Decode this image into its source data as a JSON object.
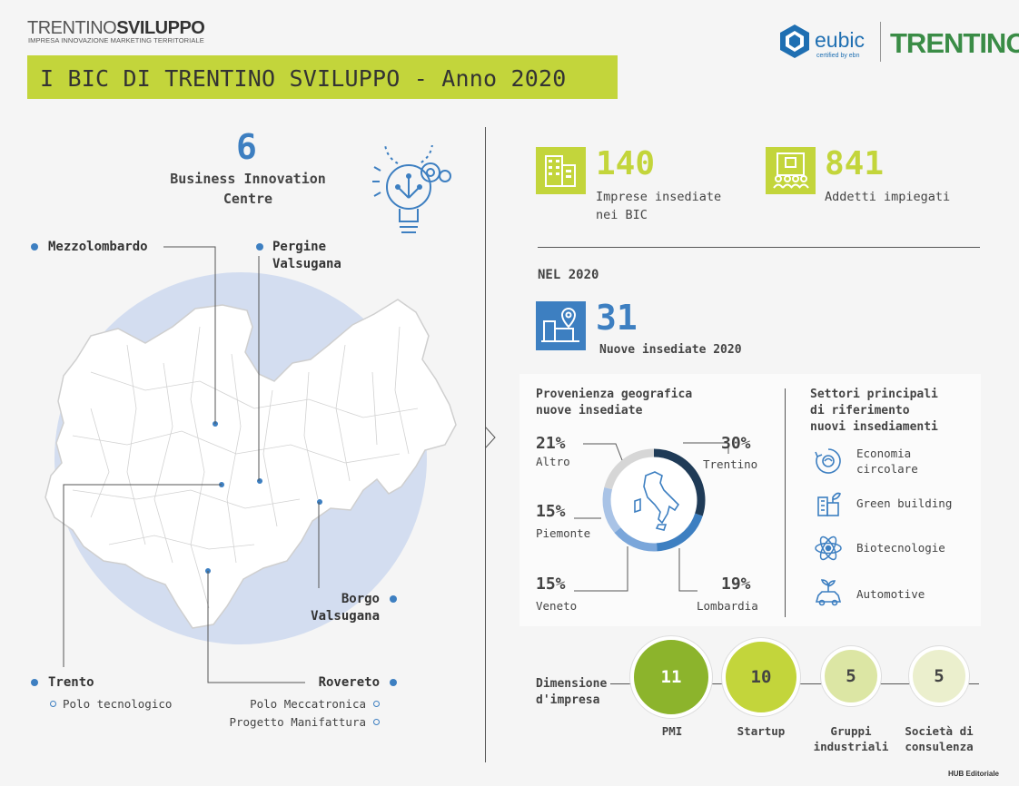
{
  "header": {
    "brand_name_light": "TRENTINO",
    "brand_name_bold": "SVILUPPO",
    "brand_subtitle": "IMPRESA INNOVAZIONE MARKETING TERRITORIALE",
    "title": "I BIC DI TRENTINO SVILUPPO - Anno 2020",
    "eubic_logo": "eubic",
    "eubic_sub": "certified by ebn",
    "trentino_logo": "TRENTINO"
  },
  "bic": {
    "count": "6",
    "label_line1": "Business Innovation",
    "label_line2": "Centre",
    "icon": "lightbulb-gear-icon"
  },
  "map": {
    "cities": [
      {
        "name": "Mezzolombardo"
      },
      {
        "name_line1": "Pergine",
        "name_line2": "Valsugana"
      },
      {
        "name_line1": "Borgo",
        "name_line2": "Valsugana"
      },
      {
        "name": "Trento",
        "sub": [
          "Polo tecnologico"
        ]
      },
      {
        "name": "Rovereto",
        "sub": [
          "Polo Meccatronica",
          "Progetto Manifattura"
        ]
      }
    ]
  },
  "stats": {
    "imprese": {
      "value": "140",
      "label_line1": "Imprese insediate",
      "label_line2": "nei BIC",
      "icon": "buildings-icon"
    },
    "addetti": {
      "value": "841",
      "label": "Addetti impiegati",
      "icon": "office-workers-icon"
    },
    "nel_2020": "NEL 2020",
    "nuove": {
      "value": "31",
      "label": "Nuove insediate 2020",
      "icon": "location-building-icon"
    }
  },
  "provenienza": {
    "title_line1": "Provenienza geografica",
    "title_line2": "nuove insediate",
    "items": [
      {
        "pct": "30%",
        "label": "Trentino"
      },
      {
        "pct": "19%",
        "label": "Lombardia"
      },
      {
        "pct": "15%",
        "label": "Veneto"
      },
      {
        "pct": "15%",
        "label": "Piemonte"
      },
      {
        "pct": "21%",
        "label": "Altro"
      }
    ]
  },
  "settori": {
    "title_line1": "Settori principali",
    "title_line2": "di riferimento",
    "title_line3": "nuovi insediamenti",
    "items": [
      {
        "label_line1": "Economia",
        "label_line2": "circolare",
        "icon": "circular-economy-icon"
      },
      {
        "label": "Green building",
        "icon": "green-building-icon"
      },
      {
        "label": "Biotecnologie",
        "icon": "atom-icon"
      },
      {
        "label": "Automotive",
        "icon": "eco-car-icon"
      }
    ]
  },
  "dimensione": {
    "title_line1": "Dimensione",
    "title_line2": "d'impresa",
    "items": [
      {
        "value": "11",
        "label_line1": "PMI",
        "label_line2": ""
      },
      {
        "value": "10",
        "label_line1": "Startup",
        "label_line2": ""
      },
      {
        "value": "5",
        "label_line1": "Gruppi",
        "label_line2": "industriali"
      },
      {
        "value": "5",
        "label_line1": "Società di",
        "label_line2": "consulenza"
      }
    ]
  },
  "footer": {
    "credit": "HUB Editoriale"
  },
  "colors": {
    "green": "#c3d53b",
    "blue": "#3d7fc1",
    "dark_blue": "#1f3b57",
    "light_blue": "#a9c3e6",
    "map_circle": "#d3ddf0"
  }
}
